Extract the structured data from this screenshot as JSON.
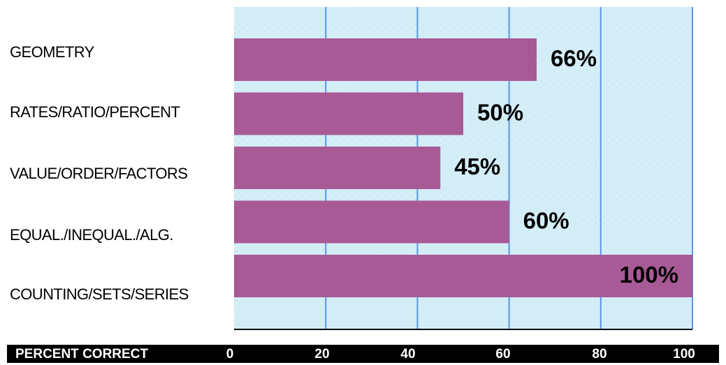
{
  "chart_data": {
    "type": "bar",
    "orientation": "horizontal",
    "categories": [
      "GEOMETRY",
      "RATES/RATIO/PERCENT",
      "VALUE/ORDER/FACTORS",
      "EQUAL./INEQUAL./ALG.",
      "COUNTING/SETS/SERIES"
    ],
    "values": [
      66,
      50,
      45,
      60,
      100
    ],
    "value_labels": [
      "66%",
      "50%",
      "45%",
      "60%",
      "100%"
    ],
    "xlabel": "PERCENT CORRECT",
    "xlim": [
      0,
      100
    ],
    "xticks": [
      0,
      20,
      40,
      60,
      80,
      100
    ],
    "xtick_labels": [
      "0",
      "20",
      "40",
      "60",
      "80",
      "100"
    ],
    "grid": true,
    "colors": {
      "bar": "#a85a96",
      "plot_background": "#d4eef8",
      "gridline": "#5b95e6",
      "axis_bar": "#000000"
    }
  }
}
